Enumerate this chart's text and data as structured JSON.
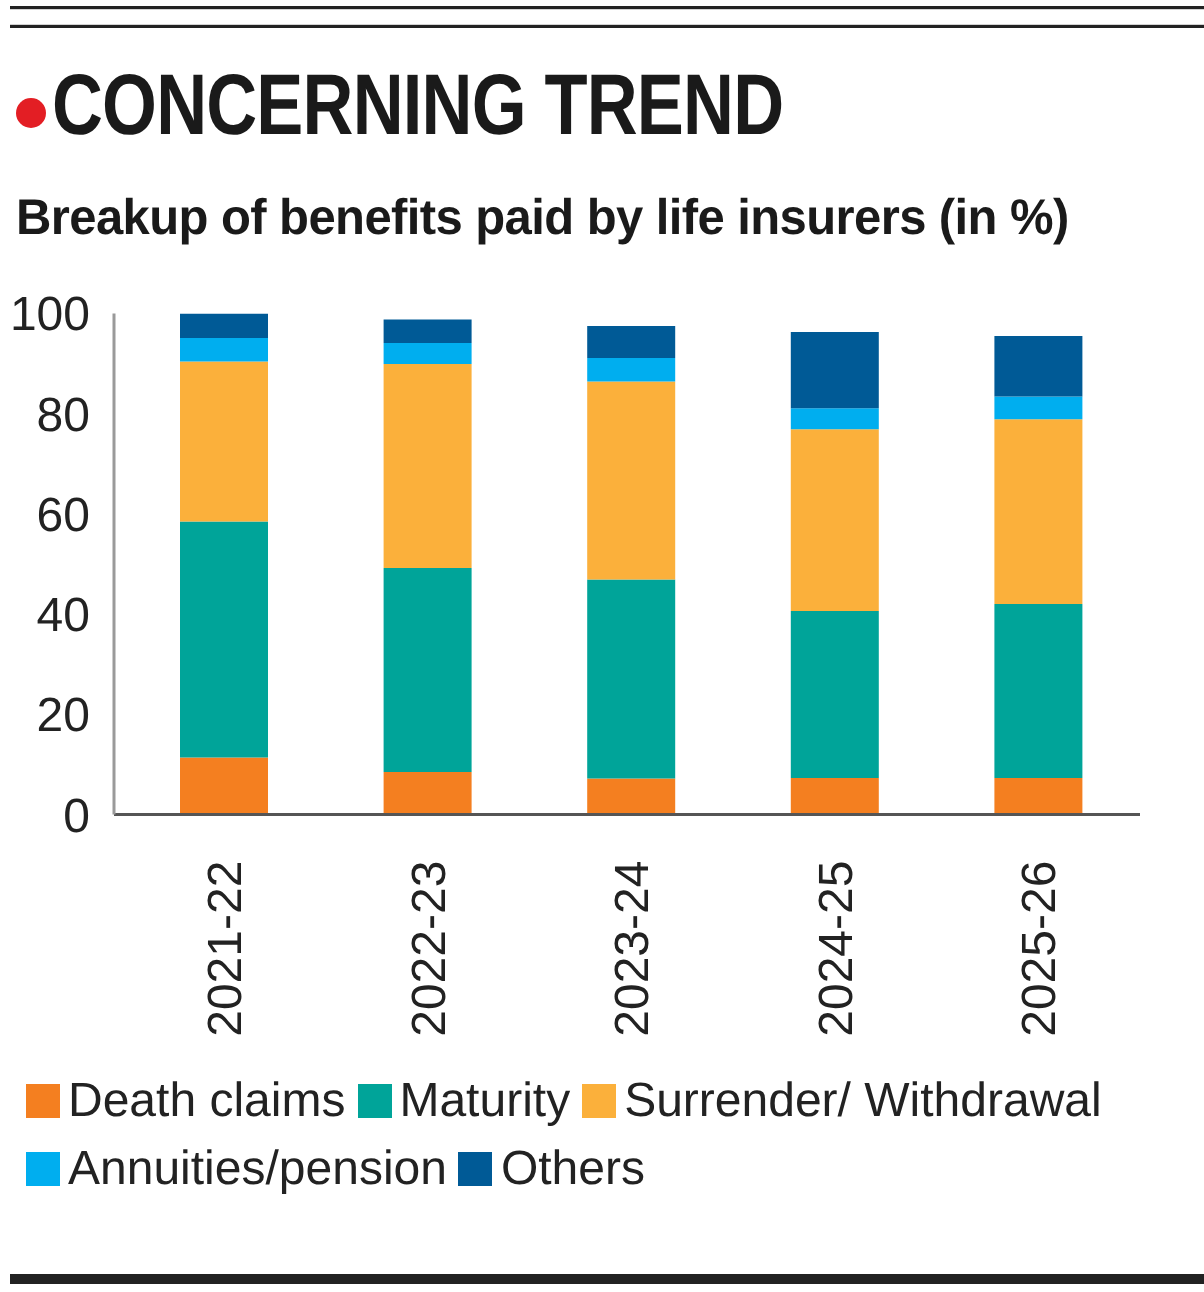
{
  "chart_data": {
    "type": "bar",
    "title": "CONCERNING TREND",
    "subtitle": "Breakup of benefits paid by life insurers (in %)",
    "categories": [
      "2021-22",
      "2022-23",
      "2023-24",
      "2024-25",
      "2025-26"
    ],
    "series": [
      {
        "name": "Death claims",
        "color": "#f47f20",
        "values": [
          11.4,
          8.5,
          7.2,
          7.3,
          7.3
        ]
      },
      {
        "name": "Maturity",
        "color": "#00a499",
        "values": [
          47.1,
          40.7,
          39.7,
          33.3,
          34.7
        ]
      },
      {
        "name": "Surrender/ Withdrawal",
        "color": "#fbb03b",
        "values": [
          31.9,
          40.7,
          39.5,
          36.3,
          36.9
        ]
      },
      {
        "name": "Annuities/pension",
        "color": "#00aeef",
        "values": [
          4.7,
          4.2,
          4.7,
          4.2,
          4.5
        ]
      },
      {
        "name": "Others",
        "color": "#005a96",
        "values": [
          4.9,
          4.7,
          6.4,
          15.2,
          12.1
        ]
      }
    ],
    "stacked": true,
    "ylim": [
      0,
      100
    ],
    "yticks": [
      0,
      20,
      40,
      60,
      80,
      100
    ],
    "legend": "bottom"
  }
}
